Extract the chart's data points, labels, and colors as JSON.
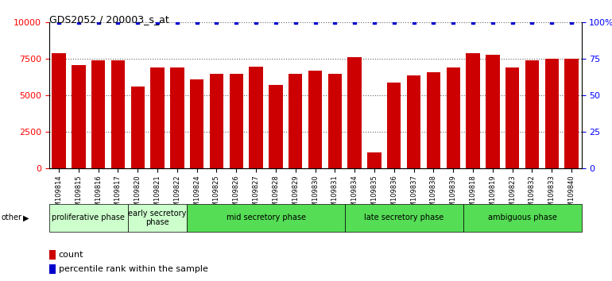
{
  "title": "GDS2052 / 200003_s_at",
  "samples": [
    "GSM109814",
    "GSM109815",
    "GSM109816",
    "GSM109817",
    "GSM109820",
    "GSM109821",
    "GSM109822",
    "GSM109824",
    "GSM109825",
    "GSM109826",
    "GSM109827",
    "GSM109828",
    "GSM109829",
    "GSM109830",
    "GSM109831",
    "GSM109834",
    "GSM109835",
    "GSM109836",
    "GSM109837",
    "GSM109838",
    "GSM109839",
    "GSM109818",
    "GSM109819",
    "GSM109823",
    "GSM109832",
    "GSM109833",
    "GSM109840"
  ],
  "counts": [
    7900,
    7100,
    7400,
    7400,
    5600,
    6900,
    6900,
    6100,
    6500,
    6500,
    7000,
    5700,
    6500,
    6700,
    6500,
    7600,
    1100,
    5900,
    6400,
    6600,
    6900,
    7900,
    7800,
    6900,
    7400,
    7500,
    7500
  ],
  "percentiles": [
    100,
    100,
    100,
    100,
    100,
    100,
    100,
    100,
    100,
    100,
    100,
    100,
    100,
    100,
    100,
    100,
    100,
    100,
    100,
    100,
    100,
    100,
    100,
    100,
    100,
    100,
    100
  ],
  "phases": [
    {
      "label": "proliferative phase",
      "start": 0,
      "end": 4,
      "color": "#ccffcc"
    },
    {
      "label": "early secretory\nphase",
      "start": 4,
      "end": 7,
      "color": "#ccffcc"
    },
    {
      "label": "mid secretory phase",
      "start": 7,
      "end": 15,
      "color": "#55dd55"
    },
    {
      "label": "late secretory phase",
      "start": 15,
      "end": 21,
      "color": "#55dd55"
    },
    {
      "label": "ambiguous phase",
      "start": 21,
      "end": 27,
      "color": "#55dd55"
    }
  ],
  "bar_color": "#cc0000",
  "percentile_color": "#0000cc",
  "ylim_left": [
    0,
    10000
  ],
  "ylim_right": [
    0,
    100
  ],
  "yticks_left": [
    0,
    2500,
    5000,
    7500,
    10000
  ],
  "yticks_right": [
    0,
    25,
    50,
    75,
    100
  ],
  "background_color": "#ffffff"
}
